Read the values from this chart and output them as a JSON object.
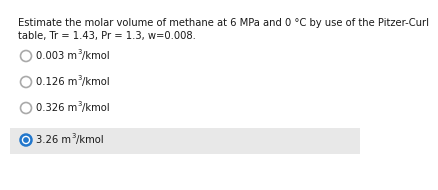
{
  "question_line1": "Estimate the molar volume of methane at 6 MPa and 0 °C by use of the Pitzer-Curl",
  "question_line2": "table, Tr = 1.43, Pr = 1.3, w=0.008.",
  "options": [
    "0.003 m³/kmol",
    "0.126 m³/kmol",
    "0.326 m³/kmol",
    "3.26 m³/kmol"
  ],
  "correct_index": 3,
  "bg_color": "#ffffff",
  "highlight_color": "#e8e8e8",
  "text_color": "#1a1a1a",
  "circle_edge_unselected": "#aaaaaa",
  "circle_edge_selected": "#2277cc",
  "font_size": 7.2,
  "question_font_size": 7.2
}
